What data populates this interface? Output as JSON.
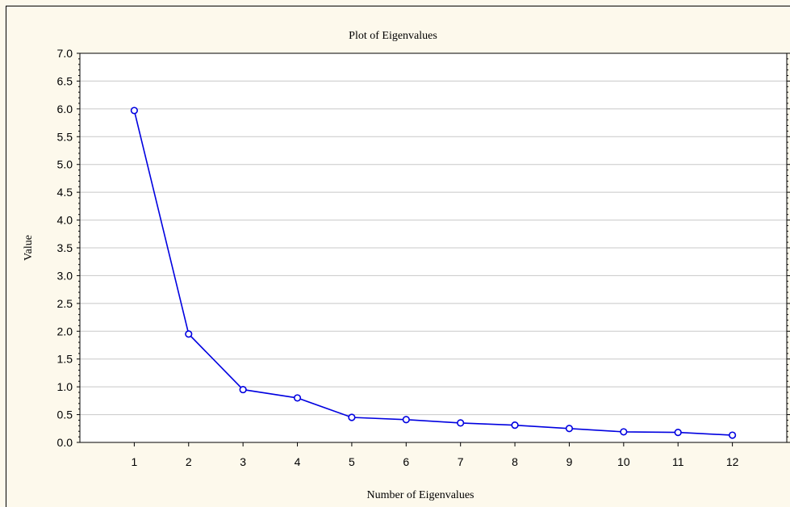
{
  "chart_data": {
    "type": "line",
    "title": "Plot of Eigenvalues",
    "xlabel": "Number of Eigenvalues",
    "ylabel": "Value",
    "x": [
      1,
      2,
      3,
      4,
      5,
      6,
      7,
      8,
      9,
      10,
      11,
      12
    ],
    "xlim": [
      0,
      13
    ],
    "ylim": [
      0,
      7
    ],
    "y_ticks": [
      "0.0",
      "0.5",
      "1.0",
      "1.5",
      "2.0",
      "2.5",
      "3.0",
      "3.5",
      "4.0",
      "4.5",
      "5.0",
      "5.5",
      "6.0",
      "6.5",
      "7.0"
    ],
    "x_ticks": [
      "1",
      "2",
      "3",
      "4",
      "5",
      "6",
      "7",
      "8",
      "9",
      "10",
      "11",
      "12"
    ],
    "series": [
      {
        "values": [
          5.97,
          1.95,
          0.95,
          0.8,
          0.45,
          0.41,
          0.35,
          0.31,
          0.25,
          0.19,
          0.18,
          0.13
        ],
        "color": "#0000e0",
        "marker": "open-circle"
      }
    ],
    "grid": "horizontal",
    "plot_background": "#ffffff",
    "figure_background": "#fdf9ec"
  }
}
